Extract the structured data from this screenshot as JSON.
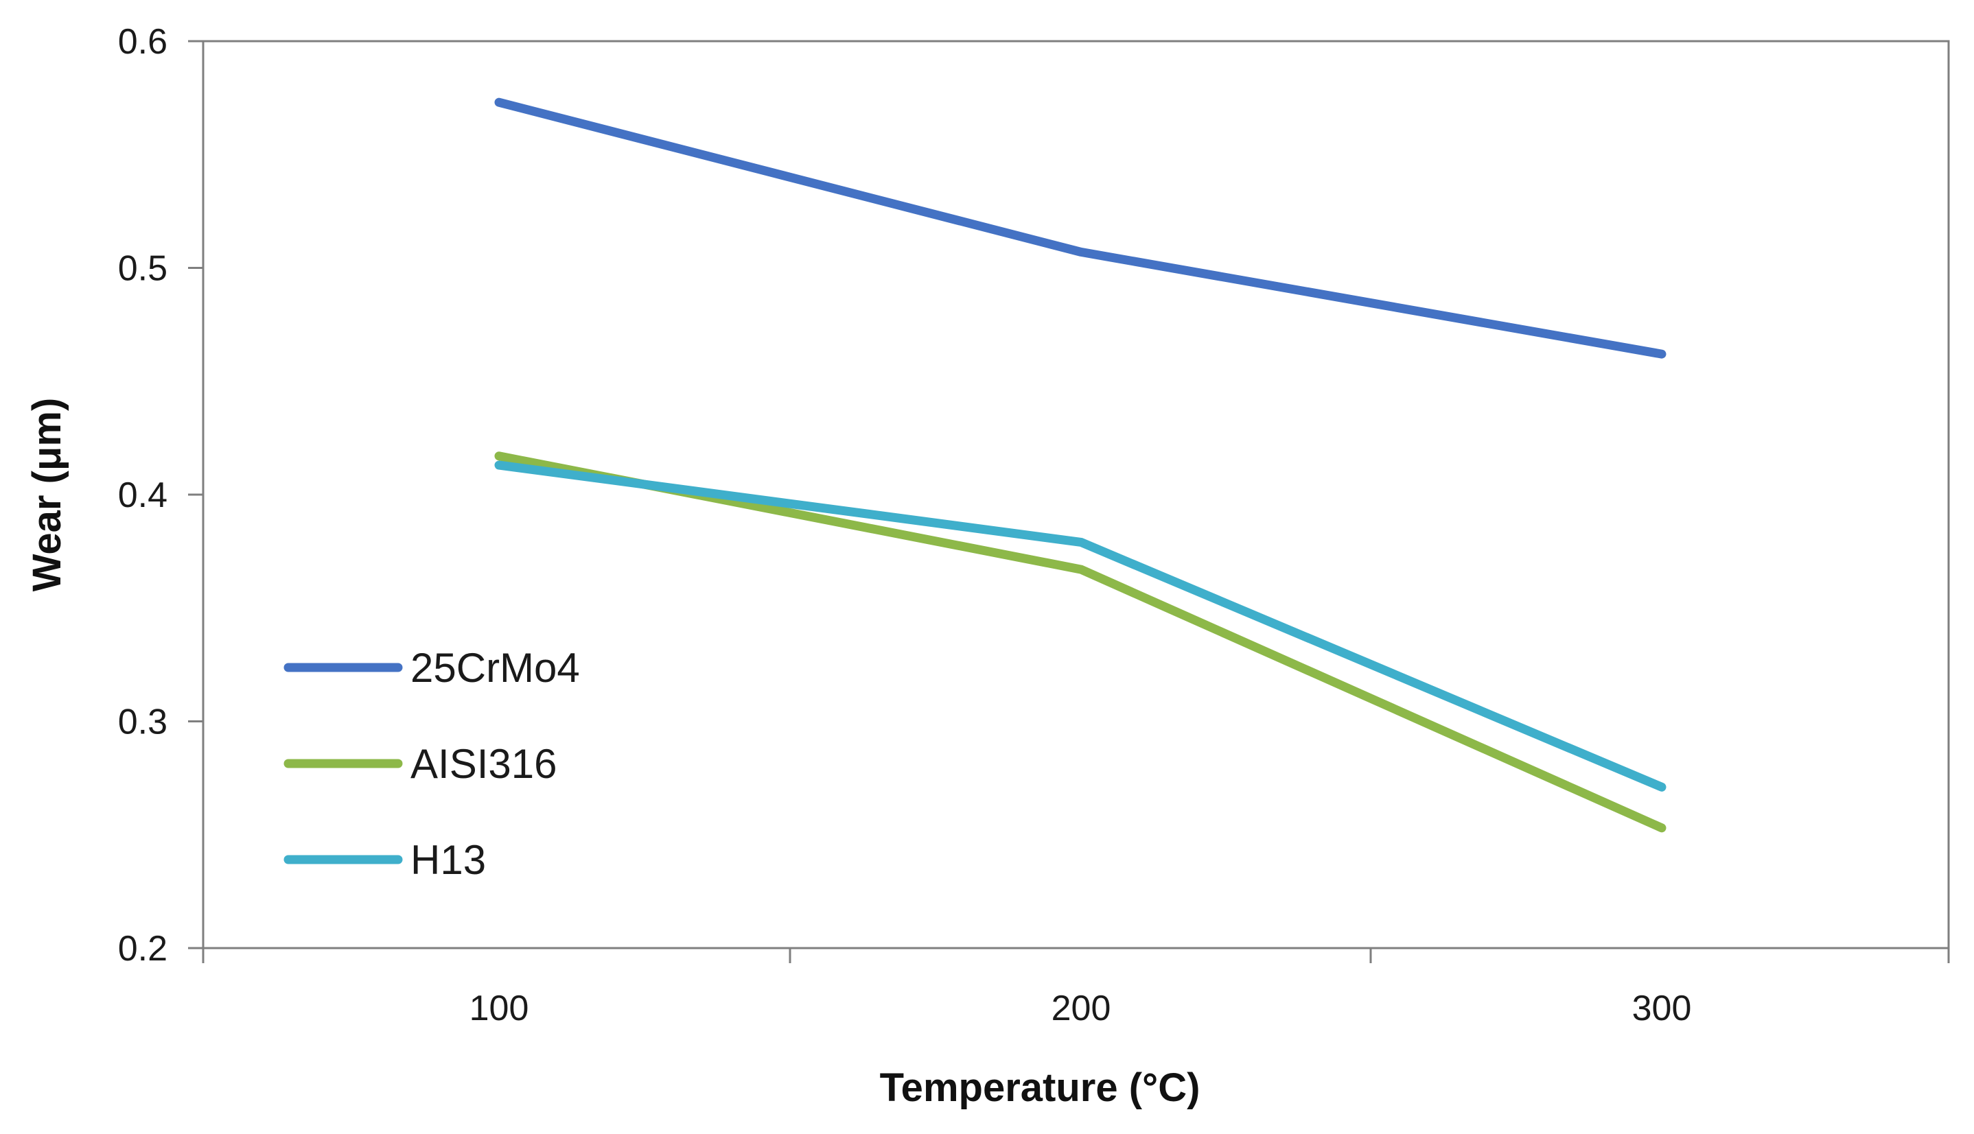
{
  "chart_data": {
    "type": "line",
    "title": "",
    "xlabel": "Temperature (°C)",
    "ylabel": "Wear (μm)",
    "categories": [
      "100",
      "200",
      "300"
    ],
    "x": [
      100,
      200,
      300
    ],
    "ylim": [
      0.2,
      0.6
    ],
    "yticks": [
      "0.2",
      "0.3",
      "0.4",
      "0.5",
      "0.6"
    ],
    "grid": false,
    "legend_position": "left-lower",
    "series": [
      {
        "name": "25CrMo4",
        "color": "#4472C4",
        "values": [
          0.573,
          0.507,
          0.462
        ]
      },
      {
        "name": "AISI316",
        "color": "#8DB849",
        "values": [
          0.417,
          0.367,
          0.253
        ]
      },
      {
        "name": "H13",
        "color": "#3FAFCB",
        "values": [
          0.413,
          0.379,
          0.271
        ]
      }
    ]
  }
}
